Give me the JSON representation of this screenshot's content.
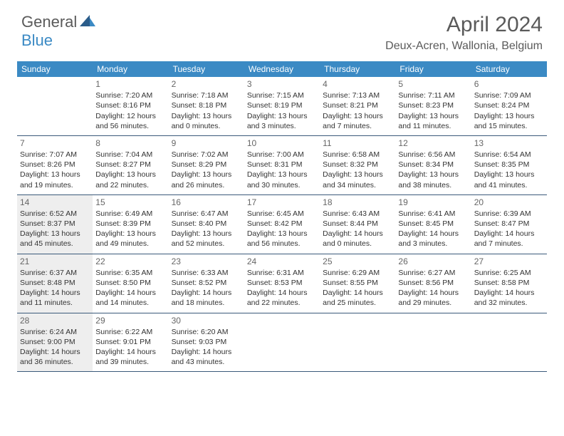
{
  "logo": {
    "part1": "General",
    "part2": "Blue"
  },
  "title": "April 2024",
  "location": "Deux-Acren, Wallonia, Belgium",
  "colors": {
    "header_bg": "#3b8ac4",
    "header_text": "#ffffff",
    "border": "#3b5a7a",
    "shaded_bg": "#eeeeee",
    "text": "#333333",
    "title_text": "#5a5a5a",
    "logo_gray": "#5a5a5a",
    "logo_blue": "#3b8ac4"
  },
  "day_names": [
    "Sunday",
    "Monday",
    "Tuesday",
    "Wednesday",
    "Thursday",
    "Friday",
    "Saturday"
  ],
  "weeks": [
    [
      {
        "day": "",
        "sunrise": "",
        "sunset": "",
        "daylight": "",
        "shaded": false
      },
      {
        "day": "1",
        "sunrise": "Sunrise: 7:20 AM",
        "sunset": "Sunset: 8:16 PM",
        "daylight": "Daylight: 12 hours and 56 minutes.",
        "shaded": false
      },
      {
        "day": "2",
        "sunrise": "Sunrise: 7:18 AM",
        "sunset": "Sunset: 8:18 PM",
        "daylight": "Daylight: 13 hours and 0 minutes.",
        "shaded": false
      },
      {
        "day": "3",
        "sunrise": "Sunrise: 7:15 AM",
        "sunset": "Sunset: 8:19 PM",
        "daylight": "Daylight: 13 hours and 3 minutes.",
        "shaded": false
      },
      {
        "day": "4",
        "sunrise": "Sunrise: 7:13 AM",
        "sunset": "Sunset: 8:21 PM",
        "daylight": "Daylight: 13 hours and 7 minutes.",
        "shaded": false
      },
      {
        "day": "5",
        "sunrise": "Sunrise: 7:11 AM",
        "sunset": "Sunset: 8:23 PM",
        "daylight": "Daylight: 13 hours and 11 minutes.",
        "shaded": false
      },
      {
        "day": "6",
        "sunrise": "Sunrise: 7:09 AM",
        "sunset": "Sunset: 8:24 PM",
        "daylight": "Daylight: 13 hours and 15 minutes.",
        "shaded": false
      }
    ],
    [
      {
        "day": "7",
        "sunrise": "Sunrise: 7:07 AM",
        "sunset": "Sunset: 8:26 PM",
        "daylight": "Daylight: 13 hours and 19 minutes.",
        "shaded": false
      },
      {
        "day": "8",
        "sunrise": "Sunrise: 7:04 AM",
        "sunset": "Sunset: 8:27 PM",
        "daylight": "Daylight: 13 hours and 22 minutes.",
        "shaded": false
      },
      {
        "day": "9",
        "sunrise": "Sunrise: 7:02 AM",
        "sunset": "Sunset: 8:29 PM",
        "daylight": "Daylight: 13 hours and 26 minutes.",
        "shaded": false
      },
      {
        "day": "10",
        "sunrise": "Sunrise: 7:00 AM",
        "sunset": "Sunset: 8:31 PM",
        "daylight": "Daylight: 13 hours and 30 minutes.",
        "shaded": false
      },
      {
        "day": "11",
        "sunrise": "Sunrise: 6:58 AM",
        "sunset": "Sunset: 8:32 PM",
        "daylight": "Daylight: 13 hours and 34 minutes.",
        "shaded": false
      },
      {
        "day": "12",
        "sunrise": "Sunrise: 6:56 AM",
        "sunset": "Sunset: 8:34 PM",
        "daylight": "Daylight: 13 hours and 38 minutes.",
        "shaded": false
      },
      {
        "day": "13",
        "sunrise": "Sunrise: 6:54 AM",
        "sunset": "Sunset: 8:35 PM",
        "daylight": "Daylight: 13 hours and 41 minutes.",
        "shaded": false
      }
    ],
    [
      {
        "day": "14",
        "sunrise": "Sunrise: 6:52 AM",
        "sunset": "Sunset: 8:37 PM",
        "daylight": "Daylight: 13 hours and 45 minutes.",
        "shaded": true
      },
      {
        "day": "15",
        "sunrise": "Sunrise: 6:49 AM",
        "sunset": "Sunset: 8:39 PM",
        "daylight": "Daylight: 13 hours and 49 minutes.",
        "shaded": false
      },
      {
        "day": "16",
        "sunrise": "Sunrise: 6:47 AM",
        "sunset": "Sunset: 8:40 PM",
        "daylight": "Daylight: 13 hours and 52 minutes.",
        "shaded": false
      },
      {
        "day": "17",
        "sunrise": "Sunrise: 6:45 AM",
        "sunset": "Sunset: 8:42 PM",
        "daylight": "Daylight: 13 hours and 56 minutes.",
        "shaded": false
      },
      {
        "day": "18",
        "sunrise": "Sunrise: 6:43 AM",
        "sunset": "Sunset: 8:44 PM",
        "daylight": "Daylight: 14 hours and 0 minutes.",
        "shaded": false
      },
      {
        "day": "19",
        "sunrise": "Sunrise: 6:41 AM",
        "sunset": "Sunset: 8:45 PM",
        "daylight": "Daylight: 14 hours and 3 minutes.",
        "shaded": false
      },
      {
        "day": "20",
        "sunrise": "Sunrise: 6:39 AM",
        "sunset": "Sunset: 8:47 PM",
        "daylight": "Daylight: 14 hours and 7 minutes.",
        "shaded": false
      }
    ],
    [
      {
        "day": "21",
        "sunrise": "Sunrise: 6:37 AM",
        "sunset": "Sunset: 8:48 PM",
        "daylight": "Daylight: 14 hours and 11 minutes.",
        "shaded": true
      },
      {
        "day": "22",
        "sunrise": "Sunrise: 6:35 AM",
        "sunset": "Sunset: 8:50 PM",
        "daylight": "Daylight: 14 hours and 14 minutes.",
        "shaded": false
      },
      {
        "day": "23",
        "sunrise": "Sunrise: 6:33 AM",
        "sunset": "Sunset: 8:52 PM",
        "daylight": "Daylight: 14 hours and 18 minutes.",
        "shaded": false
      },
      {
        "day": "24",
        "sunrise": "Sunrise: 6:31 AM",
        "sunset": "Sunset: 8:53 PM",
        "daylight": "Daylight: 14 hours and 22 minutes.",
        "shaded": false
      },
      {
        "day": "25",
        "sunrise": "Sunrise: 6:29 AM",
        "sunset": "Sunset: 8:55 PM",
        "daylight": "Daylight: 14 hours and 25 minutes.",
        "shaded": false
      },
      {
        "day": "26",
        "sunrise": "Sunrise: 6:27 AM",
        "sunset": "Sunset: 8:56 PM",
        "daylight": "Daylight: 14 hours and 29 minutes.",
        "shaded": false
      },
      {
        "day": "27",
        "sunrise": "Sunrise: 6:25 AM",
        "sunset": "Sunset: 8:58 PM",
        "daylight": "Daylight: 14 hours and 32 minutes.",
        "shaded": false
      }
    ],
    [
      {
        "day": "28",
        "sunrise": "Sunrise: 6:24 AM",
        "sunset": "Sunset: 9:00 PM",
        "daylight": "Daylight: 14 hours and 36 minutes.",
        "shaded": true
      },
      {
        "day": "29",
        "sunrise": "Sunrise: 6:22 AM",
        "sunset": "Sunset: 9:01 PM",
        "daylight": "Daylight: 14 hours and 39 minutes.",
        "shaded": false
      },
      {
        "day": "30",
        "sunrise": "Sunrise: 6:20 AM",
        "sunset": "Sunset: 9:03 PM",
        "daylight": "Daylight: 14 hours and 43 minutes.",
        "shaded": false
      },
      {
        "day": "",
        "sunrise": "",
        "sunset": "",
        "daylight": "",
        "shaded": false
      },
      {
        "day": "",
        "sunrise": "",
        "sunset": "",
        "daylight": "",
        "shaded": false
      },
      {
        "day": "",
        "sunrise": "",
        "sunset": "",
        "daylight": "",
        "shaded": false
      },
      {
        "day": "",
        "sunrise": "",
        "sunset": "",
        "daylight": "",
        "shaded": false
      }
    ]
  ]
}
